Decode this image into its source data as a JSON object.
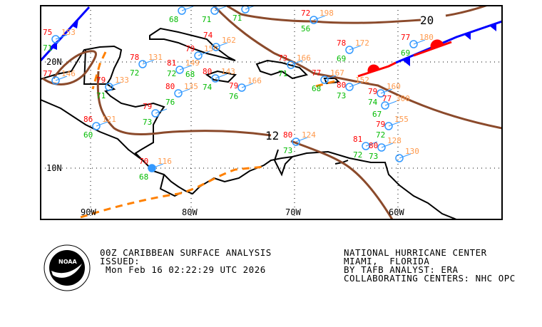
{
  "map": {
    "grid_labels": {
      "lat": [
        "20N",
        "10N"
      ],
      "lon": [
        "90W",
        "80W",
        "70W",
        "60W"
      ]
    },
    "isobar_labels": [
      "20",
      "12"
    ],
    "colors": {
      "isobar": "#8B4A2B",
      "cold_front": "#0000FF",
      "warm_front": "#FF0000",
      "trough": "#FF8000",
      "temp": "#FF0000",
      "dew": "#00BB00",
      "pressure": "#FF9A4D",
      "station": "#3399FF"
    },
    "stations": [
      {
        "temp": "75",
        "pressure": "153",
        "dew": "71"
      },
      {
        "temp": "77",
        "pressure": "146",
        "dew": ""
      },
      {
        "temp": "78",
        "pressure": "131",
        "dew": "72"
      },
      {
        "temp": "79",
        "pressure": "133",
        "dew": "71"
      },
      {
        "temp": "86",
        "pressure": "121",
        "dew": "60"
      },
      {
        "temp": "79",
        "pressure": "",
        "dew": "73"
      },
      {
        "temp": "70",
        "pressure": "116",
        "dew": "68"
      },
      {
        "temp": "80",
        "pressure": "135",
        "dew": "76"
      },
      {
        "temp": "81",
        "pressure": "149",
        "dew": "72"
      },
      {
        "temp": "79",
        "pressure": "150",
        "dew": "68"
      },
      {
        "temp": "74",
        "pressure": "162",
        "dew": ""
      },
      {
        "temp": "",
        "pressure": "",
        "dew": "68"
      },
      {
        "temp": "",
        "pressure": "",
        "dew": "71"
      },
      {
        "temp": "80",
        "pressure": "143",
        "dew": "74"
      },
      {
        "temp": "79",
        "pressure": "166",
        "dew": "76"
      },
      {
        "temp": "",
        "pressure": "",
        "dew": "71"
      },
      {
        "temp": "72",
        "pressure": "198",
        "dew": "56"
      },
      {
        "temp": "78",
        "pressure": "172",
        "dew": "69"
      },
      {
        "temp": "77",
        "pressure": "180",
        "dew": "69"
      },
      {
        "temp": "73",
        "pressure": "166",
        "dew": "71"
      },
      {
        "temp": "77",
        "pressure": "167",
        "dew": "68"
      },
      {
        "temp": "80",
        "pressure": "152",
        "dew": "73"
      },
      {
        "temp": "79",
        "pressure": "160",
        "dew": "74"
      },
      {
        "temp": "77",
        "pressure": "300",
        "dew": "67"
      },
      {
        "temp": "79",
        "pressure": "155",
        "dew": "72"
      },
      {
        "temp": "80",
        "pressure": "124",
        "dew": "73"
      },
      {
        "temp": "81",
        "pressure": "",
        "dew": "72"
      },
      {
        "temp": "80",
        "pressure": "128",
        "dew": "73"
      },
      {
        "temp": "",
        "pressure": "130",
        "dew": ""
      }
    ]
  },
  "footer": {
    "logo_text": "NOAA",
    "title": "00Z CARIBBEAN SURFACE ANALYSIS",
    "issued_label": "ISSUED:",
    "issued_time": " Mon Feb 16 02:22:29 UTC 2026",
    "center": "NATIONAL HURRICANE CENTER",
    "location": "MIAMI,  FLORIDA",
    "analyst": "BY TAFB ANALYST: ERA",
    "collaborating": "COLLABORATING CENTERS: NHC OPC"
  }
}
